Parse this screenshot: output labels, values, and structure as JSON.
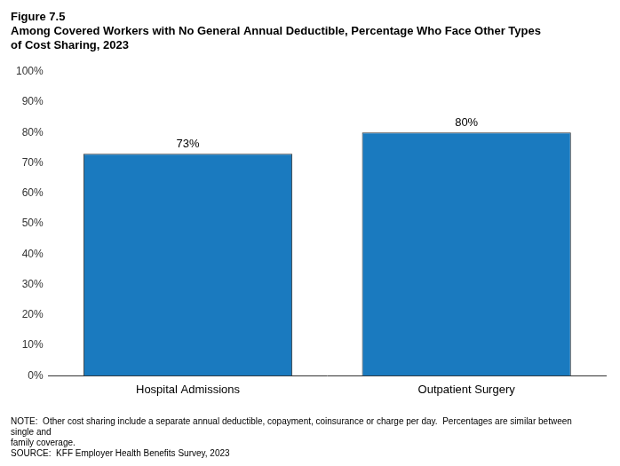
{
  "chart_data": {
    "type": "bar",
    "title": [
      "Figure 7.5",
      "Among Covered Workers with No General Annual Deductible, Percentage Who Face Other Types",
      "of Cost Sharing, 2023"
    ],
    "categories": [
      "Hospital Admissions",
      "Outpatient Surgery"
    ],
    "values": [
      73,
      80
    ],
    "value_labels": [
      "73%",
      "80%"
    ],
    "data_labels": true,
    "color": "#1a7abf",
    "ylim": [
      0,
      100
    ],
    "yticks": [
      {
        "value": 0,
        "label": "0%"
      },
      {
        "value": 10,
        "label": "10%"
      },
      {
        "value": 20,
        "label": "20%"
      },
      {
        "value": 30,
        "label": "30%"
      },
      {
        "value": 40,
        "label": "40%"
      },
      {
        "value": 50,
        "label": "50%"
      },
      {
        "value": 60,
        "label": "60%"
      },
      {
        "value": 70,
        "label": "70%"
      },
      {
        "value": 80,
        "label": "80%"
      },
      {
        "value": 90,
        "label": "90%"
      },
      {
        "value": 100,
        "label": "100%"
      }
    ],
    "grid": false,
    "annotations": [
      "NOTE:  Other cost sharing include a separate annual deductible, copayment, coinsurance or charge per day.  Percentages are similar between single and",
      "family coverage.",
      "SOURCE:  KFF Employer Health Benefits Survey, 2023"
    ]
  }
}
